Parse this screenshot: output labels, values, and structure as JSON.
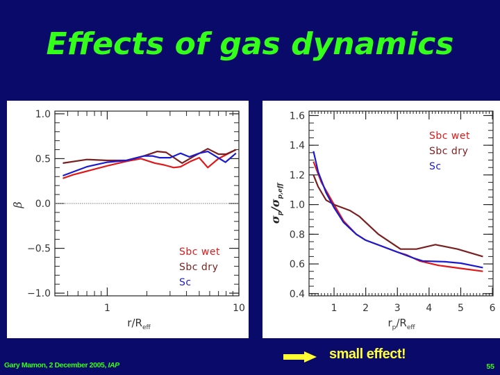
{
  "slide": {
    "title": "Effects of gas dynamics",
    "footer_author": "Gary Mamon, 2 December 2005, ",
    "footer_institute": "IAP",
    "page_number": "55",
    "conclusion": "small effect!",
    "conclusion_icon": "right-arrow-icon",
    "colors": {
      "background": "#0a0a6a",
      "title": "#33ff1a",
      "conclusion": "#ffff33"
    }
  },
  "chart_data": [
    {
      "type": "line",
      "title": "",
      "xlabel": "r/R",
      "xlabel_sub": "eff",
      "ylabel": "β",
      "xscale": "log",
      "xlim": [
        0.4,
        10
      ],
      "ylim": [
        -1.03,
        1.03
      ],
      "xticks": [
        1,
        10
      ],
      "xtick_labels": [
        "1",
        "10"
      ],
      "yticks": [
        -1.0,
        -0.5,
        0.0,
        0.5,
        1.0
      ],
      "ytick_labels": [
        "−1.0",
        "−0.5",
        "0.0",
        "0.5",
        "1.0"
      ],
      "reference_line": 0.0,
      "grid": false,
      "legend_position": "bottom-right",
      "series": [
        {
          "name": "Sbc wet",
          "color": "#e01818",
          "x": [
            0.46,
            0.55,
            0.7,
            1.0,
            1.4,
            1.8,
            2.3,
            2.7,
            3.2,
            3.6,
            4.3,
            5.0,
            5.8,
            7.0,
            9.5
          ],
          "y": [
            0.28,
            0.32,
            0.36,
            0.42,
            0.47,
            0.5,
            0.45,
            0.43,
            0.4,
            0.41,
            0.47,
            0.51,
            0.4,
            0.5,
            0.6
          ]
        },
        {
          "name": "Sbc dry",
          "color": "#7a1f1f",
          "x": [
            0.46,
            0.7,
            1.0,
            1.4,
            1.9,
            2.4,
            2.8,
            3.7,
            4.6,
            5.8,
            7.0,
            8.0,
            9.5
          ],
          "y": [
            0.45,
            0.49,
            0.48,
            0.48,
            0.53,
            0.58,
            0.57,
            0.45,
            0.53,
            0.61,
            0.55,
            0.55,
            0.6
          ]
        },
        {
          "name": "Sc",
          "color": "#1a1ad0",
          "x": [
            0.46,
            0.7,
            1.0,
            1.4,
            1.9,
            2.2,
            2.5,
            3.0,
            3.6,
            4.2,
            5.0,
            5.8,
            7.9,
            9.5
          ],
          "y": [
            0.31,
            0.41,
            0.46,
            0.48,
            0.53,
            0.53,
            0.51,
            0.51,
            0.56,
            0.52,
            0.56,
            0.58,
            0.46,
            0.56
          ]
        }
      ]
    },
    {
      "type": "line",
      "title": "",
      "xlabel": "r",
      "xlabel_sub1": "p",
      "xlabel_mid": "/R",
      "xlabel_sub2": "eff",
      "ylabel": "σ",
      "ylabel_sub1": "p",
      "ylabel_mid": "/σ",
      "ylabel_sub2": "p,eff",
      "xscale": "linear",
      "xlim": [
        0.21,
        6.02
      ],
      "ylim": [
        0.385,
        1.63
      ],
      "xticks": [
        1,
        2,
        3,
        4,
        5,
        6
      ],
      "xtick_labels": [
        "1",
        "2",
        "3",
        "4",
        "5",
        "6"
      ],
      "yticks": [
        0.4,
        0.6,
        0.8,
        1.0,
        1.2,
        1.4,
        1.6
      ],
      "ytick_labels": [
        "0.4",
        "0.6",
        "0.8",
        "1.0",
        "1.2",
        "1.4",
        "1.6"
      ],
      "grid": false,
      "legend_position": "top-right",
      "series": [
        {
          "name": "Sbc wet",
          "color": "#e01818",
          "x": [
            0.35,
            0.6,
            1.0,
            1.3,
            1.7,
            2.0,
            2.5,
            3.0,
            3.3,
            3.7,
            4.3,
            5.0,
            5.7
          ],
          "y": [
            1.29,
            1.15,
            1.0,
            0.89,
            0.8,
            0.76,
            0.72,
            0.68,
            0.66,
            0.62,
            0.59,
            0.57,
            0.55
          ]
        },
        {
          "name": "Sbc dry",
          "color": "#7a1f1f",
          "x": [
            0.35,
            0.5,
            0.75,
            1.0,
            1.5,
            1.8,
            2.4,
            3.1,
            3.6,
            4.2,
            4.9,
            5.7
          ],
          "y": [
            1.2,
            1.12,
            1.03,
            1.0,
            0.96,
            0.92,
            0.8,
            0.7,
            0.7,
            0.73,
            0.7,
            0.65
          ]
        },
        {
          "name": "Sc",
          "color": "#1a1ad0",
          "x": [
            0.35,
            0.5,
            0.75,
            1.0,
            1.3,
            1.7,
            2.0,
            2.5,
            3.0,
            3.5,
            3.8,
            4.5,
            5.0,
            5.7
          ],
          "y": [
            1.36,
            1.22,
            1.08,
            0.98,
            0.88,
            0.8,
            0.76,
            0.72,
            0.68,
            0.64,
            0.62,
            0.615,
            0.605,
            0.575
          ]
        }
      ]
    }
  ]
}
